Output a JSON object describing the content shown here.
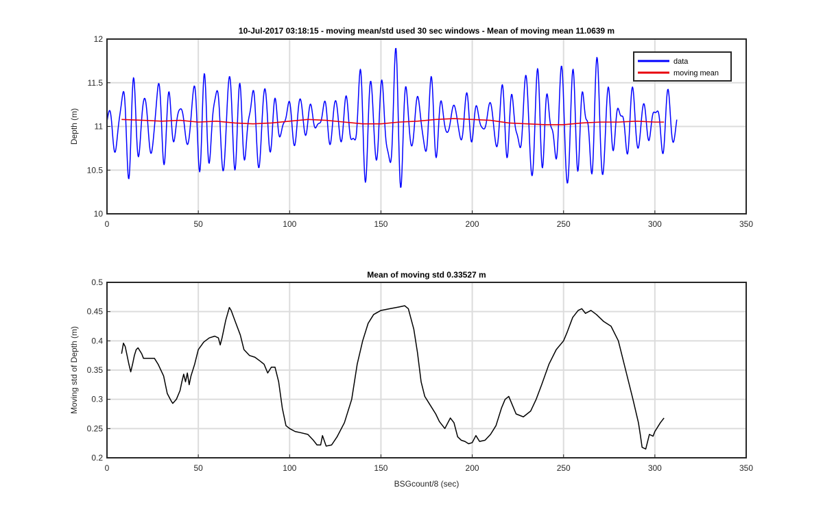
{
  "colors": {
    "data": "#0000ff",
    "moving_mean": "#e8000b",
    "moving_std": "#000000",
    "grid": "#dcdcdc",
    "axis": "#262626"
  },
  "chart_data": [
    {
      "type": "line",
      "title": "10-Jul-2017 03:18:15 - moving mean/std used 30 sec windows - Mean of moving mean 11.0639 m",
      "xlabel": "",
      "ylabel": "Depth (m)",
      "xlim": [
        0,
        350
      ],
      "ylim": [
        10,
        12
      ],
      "xticks": [
        "0",
        "50",
        "100",
        "150",
        "200",
        "250",
        "300",
        "350"
      ],
      "yticks": [
        "10",
        "10.5",
        "11",
        "11.5",
        "12"
      ],
      "legend": {
        "position": "top-right",
        "entries": [
          "data",
          "moving mean"
        ]
      },
      "series": [
        {
          "name": "data",
          "color": "#0000ff",
          "periods": [
            6.5,
            4.8,
            10.0,
            3.9
          ],
          "envelope": [
            [
              0,
              0.2
            ],
            [
              3,
              0.45
            ],
            [
              10,
              0.6
            ],
            [
              20,
              0.55
            ],
            [
              28,
              0.6
            ],
            [
              33,
              0.4
            ],
            [
              40,
              0.3
            ],
            [
              48,
              0.5
            ],
            [
              55,
              0.7
            ],
            [
              60,
              0.8
            ],
            [
              66,
              0.65
            ],
            [
              72,
              0.55
            ],
            [
              78,
              0.75
            ],
            [
              85,
              0.5
            ],
            [
              95,
              0.3
            ],
            [
              105,
              0.3
            ],
            [
              115,
              0.2
            ],
            [
              125,
              0.3
            ],
            [
              135,
              0.55
            ],
            [
              145,
              0.7
            ],
            [
              152,
              0.9
            ],
            [
              158,
              0.8
            ],
            [
              165,
              0.6
            ],
            [
              175,
              0.5
            ],
            [
              185,
              0.35
            ],
            [
              195,
              0.28
            ],
            [
              205,
              0.28
            ],
            [
              215,
              0.35
            ],
            [
              225,
              0.7
            ],
            [
              235,
              0.65
            ],
            [
              245,
              0.7
            ],
            [
              255,
              0.75
            ],
            [
              262,
              0.85
            ],
            [
              270,
              0.7
            ],
            [
              280,
              0.45
            ],
            [
              290,
              0.35
            ],
            [
              298,
              0.4
            ],
            [
              305,
              0.35
            ],
            [
              312,
              0.3
            ]
          ],
          "baseline": [
            [
              0,
              11.0
            ],
            [
              40,
              11.06
            ],
            [
              80,
              11.02
            ],
            [
              110,
              11.09
            ],
            [
              150,
              11.03
            ],
            [
              200,
              11.08
            ],
            [
              250,
              11.02
            ],
            [
              312,
              11.05
            ]
          ],
          "x_range": [
            0,
            312
          ],
          "step": 0.25
        },
        {
          "name": "moving mean",
          "color": "#e8000b",
          "points": [
            [
              8,
              11.08
            ],
            [
              20,
              11.07
            ],
            [
              30,
              11.06
            ],
            [
              40,
              11.07
            ],
            [
              50,
              11.05
            ],
            [
              60,
              11.06
            ],
            [
              70,
              11.04
            ],
            [
              80,
              11.03
            ],
            [
              90,
              11.04
            ],
            [
              100,
              11.06
            ],
            [
              110,
              11.08
            ],
            [
              120,
              11.07
            ],
            [
              130,
              11.05
            ],
            [
              140,
              11.03
            ],
            [
              150,
              11.03
            ],
            [
              160,
              11.05
            ],
            [
              170,
              11.06
            ],
            [
              180,
              11.08
            ],
            [
              190,
              11.09
            ],
            [
              200,
              11.08
            ],
            [
              210,
              11.07
            ],
            [
              220,
              11.04
            ],
            [
              230,
              11.03
            ],
            [
              240,
              11.02
            ],
            [
              250,
              11.02
            ],
            [
              260,
              11.04
            ],
            [
              270,
              11.05
            ],
            [
              280,
              11.05
            ],
            [
              290,
              11.06
            ],
            [
              300,
              11.05
            ],
            [
              305,
              11.05
            ]
          ]
        }
      ]
    },
    {
      "type": "line",
      "title": "Mean of moving std 0.33527 m",
      "xlabel": "BSGcount/8 (sec)",
      "ylabel": "Moving std of Depth (m)",
      "xlim": [
        0,
        350
      ],
      "ylim": [
        0.2,
        0.5
      ],
      "xticks": [
        "0",
        "50",
        "100",
        "150",
        "200",
        "250",
        "300",
        "350"
      ],
      "yticks": [
        "0.2",
        "0.25",
        "0.3",
        "0.35",
        "0.4",
        "0.45",
        "0.5"
      ],
      "series": [
        {
          "name": "moving std",
          "color": "#000000",
          "points": [
            [
              8,
              0.378
            ],
            [
              9,
              0.396
            ],
            [
              10,
              0.39
            ],
            [
              12,
              0.36
            ],
            [
              13,
              0.347
            ],
            [
              14,
              0.36
            ],
            [
              15,
              0.375
            ],
            [
              16,
              0.385
            ],
            [
              17,
              0.388
            ],
            [
              19,
              0.378
            ],
            [
              20,
              0.37
            ],
            [
              23,
              0.37
            ],
            [
              26,
              0.37
            ],
            [
              28,
              0.36
            ],
            [
              31,
              0.34
            ],
            [
              33,
              0.31
            ],
            [
              35,
              0.298
            ],
            [
              36,
              0.293
            ],
            [
              38,
              0.3
            ],
            [
              40,
              0.315
            ],
            [
              41,
              0.33
            ],
            [
              42,
              0.343
            ],
            [
              43,
              0.33
            ],
            [
              44,
              0.345
            ],
            [
              45,
              0.325
            ],
            [
              46,
              0.34
            ],
            [
              48,
              0.36
            ],
            [
              50,
              0.385
            ],
            [
              53,
              0.398
            ],
            [
              56,
              0.405
            ],
            [
              59,
              0.408
            ],
            [
              61,
              0.405
            ],
            [
              62,
              0.393
            ],
            [
              63,
              0.405
            ],
            [
              65,
              0.435
            ],
            [
              67,
              0.457
            ],
            [
              68,
              0.452
            ],
            [
              70,
              0.435
            ],
            [
              73,
              0.41
            ],
            [
              75,
              0.385
            ],
            [
              78,
              0.375
            ],
            [
              81,
              0.372
            ],
            [
              84,
              0.365
            ],
            [
              86,
              0.36
            ],
            [
              88,
              0.345
            ],
            [
              90,
              0.355
            ],
            [
              92,
              0.355
            ],
            [
              94,
              0.33
            ],
            [
              96,
              0.285
            ],
            [
              98,
              0.255
            ],
            [
              100,
              0.25
            ],
            [
              103,
              0.245
            ],
            [
              106,
              0.243
            ],
            [
              110,
              0.24
            ],
            [
              113,
              0.23
            ],
            [
              115,
              0.222
            ],
            [
              117,
              0.222
            ],
            [
              118,
              0.238
            ],
            [
              120,
              0.22
            ],
            [
              123,
              0.222
            ],
            [
              126,
              0.236
            ],
            [
              130,
              0.26
            ],
            [
              134,
              0.3
            ],
            [
              137,
              0.36
            ],
            [
              140,
              0.4
            ],
            [
              143,
              0.43
            ],
            [
              146,
              0.445
            ],
            [
              150,
              0.452
            ],
            [
              155,
              0.455
            ],
            [
              160,
              0.458
            ],
            [
              163,
              0.46
            ],
            [
              165,
              0.455
            ],
            [
              168,
              0.42
            ],
            [
              170,
              0.38
            ],
            [
              172,
              0.33
            ],
            [
              174,
              0.305
            ],
            [
              177,
              0.29
            ],
            [
              180,
              0.275
            ],
            [
              182,
              0.262
            ],
            [
              185,
              0.25
            ],
            [
              188,
              0.268
            ],
            [
              190,
              0.26
            ],
            [
              192,
              0.236
            ],
            [
              194,
              0.23
            ],
            [
              196,
              0.228
            ],
            [
              198,
              0.224
            ],
            [
              200,
              0.226
            ],
            [
              202,
              0.238
            ],
            [
              204,
              0.228
            ],
            [
              207,
              0.23
            ],
            [
              210,
              0.24
            ],
            [
              213,
              0.255
            ],
            [
              216,
              0.285
            ],
            [
              218,
              0.3
            ],
            [
              220,
              0.305
            ],
            [
              222,
              0.29
            ],
            [
              224,
              0.275
            ],
            [
              228,
              0.27
            ],
            [
              232,
              0.28
            ],
            [
              235,
              0.3
            ],
            [
              238,
              0.325
            ],
            [
              242,
              0.36
            ],
            [
              246,
              0.385
            ],
            [
              250,
              0.4
            ],
            [
              252,
              0.415
            ],
            [
              255,
              0.44
            ],
            [
              258,
              0.452
            ],
            [
              260,
              0.455
            ],
            [
              262,
              0.447
            ],
            [
              265,
              0.452
            ],
            [
              268,
              0.445
            ],
            [
              272,
              0.433
            ],
            [
              276,
              0.425
            ],
            [
              280,
              0.4
            ],
            [
              284,
              0.35
            ],
            [
              288,
              0.3
            ],
            [
              291,
              0.26
            ],
            [
              292,
              0.24
            ],
            [
              293,
              0.218
            ],
            [
              295,
              0.215
            ],
            [
              297,
              0.24
            ],
            [
              299,
              0.237
            ],
            [
              300,
              0.245
            ],
            [
              303,
              0.26
            ],
            [
              305,
              0.268
            ]
          ]
        }
      ]
    }
  ]
}
